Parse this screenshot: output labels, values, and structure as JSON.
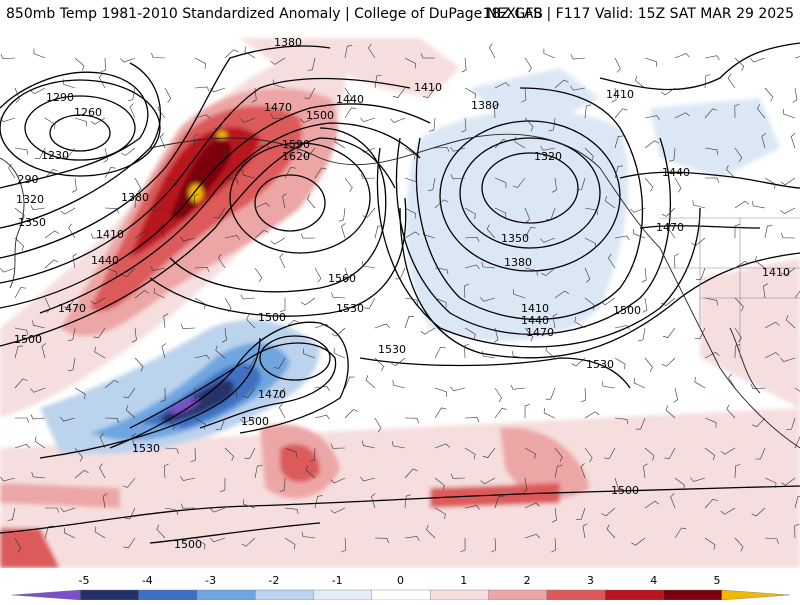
{
  "header": {
    "title": "850mb Temp 1981-2010 Standardized Anomaly | College of DuPage NEXLAB",
    "run_info": "18Z GFS | F117 Valid: 15Z SAT MAR 29 2025"
  },
  "legend": {
    "ticks": [
      "-5",
      "-4",
      "-3",
      "-2",
      "-1",
      "0",
      "1",
      "2",
      "3",
      "4",
      "5"
    ],
    "colors": [
      "#7a4fc7",
      "#25306b",
      "#3f6fc2",
      "#6fa6e0",
      "#bcd3ee",
      "#e2ecf7",
      "#ffffff",
      "#f6dede",
      "#eda6a6",
      "#dc5a5a",
      "#b8141e",
      "#7a0010",
      "#f0b800"
    ]
  },
  "contour_labels": [
    {
      "text": "1380"
    },
    {
      "text": "1290"
    },
    {
      "text": "1260"
    },
    {
      "text": "1230"
    },
    {
      "text": "290"
    },
    {
      "text": "1320"
    },
    {
      "text": "1350"
    },
    {
      "text": "1410"
    },
    {
      "text": "1440"
    },
    {
      "text": "1470"
    },
    {
      "text": "1500"
    },
    {
      "text": "1380"
    },
    {
      "text": "1470"
    },
    {
      "text": "1500"
    },
    {
      "text": "1440"
    },
    {
      "text": "1590"
    },
    {
      "text": "1620"
    },
    {
      "text": "1560"
    },
    {
      "text": "1530"
    },
    {
      "text": "1500"
    },
    {
      "text": "1470"
    },
    {
      "text": "1500"
    },
    {
      "text": "1530"
    },
    {
      "text": "1530"
    },
    {
      "text": "1530"
    },
    {
      "text": "1410"
    },
    {
      "text": "1380"
    },
    {
      "text": "1320"
    },
    {
      "text": "1350"
    },
    {
      "text": "1380"
    },
    {
      "text": "1410"
    },
    {
      "text": "1440"
    },
    {
      "text": "1470"
    },
    {
      "text": "1500"
    },
    {
      "text": "1410"
    },
    {
      "text": "1440"
    },
    {
      "text": "1470"
    },
    {
      "text": "1410"
    },
    {
      "text": "1500"
    },
    {
      "text": "1500"
    }
  ]
}
